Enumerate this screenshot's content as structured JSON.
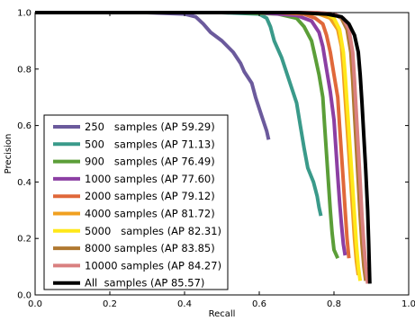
{
  "chart_data": {
    "type": "line",
    "xlabel": "Recall",
    "ylabel": "Precision",
    "xlim": [
      0.0,
      1.0
    ],
    "ylim": [
      0.0,
      1.0
    ],
    "xticks": [
      "0.0",
      "0.2",
      "0.4",
      "0.6",
      "0.8",
      "1.0"
    ],
    "yticks": [
      "0.0",
      "0.2",
      "0.4",
      "0.6",
      "0.8",
      "1.0"
    ],
    "grid": false,
    "legend_position": "lower-left",
    "series": [
      {
        "name": "250   samples (AP 59.29)",
        "color": "#6b5a9c",
        "x": [
          0.0,
          0.3,
          0.4,
          0.43,
          0.45,
          0.47,
          0.5,
          0.53,
          0.55,
          0.56,
          0.58,
          0.59,
          0.6,
          0.61,
          0.62,
          0.625
        ],
        "y": [
          1.0,
          1.0,
          0.995,
          0.985,
          0.96,
          0.93,
          0.9,
          0.86,
          0.82,
          0.79,
          0.75,
          0.7,
          0.66,
          0.62,
          0.58,
          0.55
        ]
      },
      {
        "name": "500   samples (AP 71.13)",
        "color": "#3a9a8a",
        "x": [
          0.0,
          0.5,
          0.6,
          0.62,
          0.63,
          0.64,
          0.66,
          0.68,
          0.7,
          0.71,
          0.72,
          0.73,
          0.745,
          0.755,
          0.76,
          0.765
        ],
        "y": [
          1.0,
          1.0,
          0.995,
          0.98,
          0.95,
          0.9,
          0.84,
          0.76,
          0.68,
          0.6,
          0.52,
          0.45,
          0.4,
          0.35,
          0.31,
          0.28
        ]
      },
      {
        "name": "900   samples (AP 76.49)",
        "color": "#5b9e38",
        "x": [
          0.0,
          0.55,
          0.65,
          0.7,
          0.72,
          0.74,
          0.75,
          0.76,
          0.77,
          0.775,
          0.78,
          0.785,
          0.79,
          0.795,
          0.8,
          0.81
        ],
        "y": [
          1.0,
          1.0,
          0.995,
          0.98,
          0.95,
          0.9,
          0.84,
          0.78,
          0.7,
          0.6,
          0.5,
          0.4,
          0.3,
          0.22,
          0.16,
          0.13
        ]
      },
      {
        "name": "1000 samples (AP 77.60)",
        "color": "#8c3fa3",
        "x": [
          0.0,
          0.6,
          0.7,
          0.74,
          0.76,
          0.77,
          0.78,
          0.79,
          0.8,
          0.805,
          0.81,
          0.815,
          0.82,
          0.825,
          0.83
        ],
        "y": [
          1.0,
          1.0,
          0.99,
          0.97,
          0.93,
          0.88,
          0.8,
          0.72,
          0.62,
          0.52,
          0.42,
          0.33,
          0.25,
          0.18,
          0.14
        ]
      },
      {
        "name": "2000 samples (AP 79.12)",
        "color": "#e0683a",
        "x": [
          0.0,
          0.65,
          0.72,
          0.75,
          0.77,
          0.78,
          0.79,
          0.8,
          0.81,
          0.815,
          0.82,
          0.825,
          0.83,
          0.835,
          0.84
        ],
        "y": [
          1.0,
          1.0,
          0.995,
          0.98,
          0.96,
          0.92,
          0.86,
          0.78,
          0.7,
          0.6,
          0.5,
          0.4,
          0.3,
          0.2,
          0.13
        ]
      },
      {
        "name": "4000 samples (AP 81.72)",
        "color": "#f0a020",
        "x": [
          0.0,
          0.7,
          0.76,
          0.79,
          0.81,
          0.82,
          0.825,
          0.83,
          0.835,
          0.84,
          0.845,
          0.85,
          0.855,
          0.86,
          0.865
        ],
        "y": [
          1.0,
          1.0,
          0.995,
          0.98,
          0.94,
          0.88,
          0.8,
          0.7,
          0.6,
          0.5,
          0.4,
          0.3,
          0.2,
          0.12,
          0.07
        ]
      },
      {
        "name": "5000   samples (AP 82.31)",
        "color": "#ffe81a",
        "x": [
          0.0,
          0.72,
          0.78,
          0.8,
          0.815,
          0.825,
          0.83,
          0.835,
          0.84,
          0.845,
          0.85,
          0.855,
          0.86,
          0.865,
          0.87
        ],
        "y": [
          1.0,
          1.0,
          0.995,
          0.98,
          0.94,
          0.86,
          0.78,
          0.68,
          0.58,
          0.48,
          0.38,
          0.28,
          0.18,
          0.1,
          0.05
        ]
      },
      {
        "name": "8000 samples (AP 83.85)",
        "color": "#b07830",
        "x": [
          0.0,
          0.75,
          0.8,
          0.82,
          0.835,
          0.845,
          0.85,
          0.855,
          0.86,
          0.865,
          0.87,
          0.875,
          0.88,
          0.885
        ],
        "y": [
          1.0,
          1.0,
          0.995,
          0.98,
          0.94,
          0.86,
          0.76,
          0.64,
          0.52,
          0.4,
          0.28,
          0.18,
          0.1,
          0.05
        ]
      },
      {
        "name": "10000 samples (AP 84.27)",
        "color": "#d98080",
        "x": [
          0.0,
          0.75,
          0.8,
          0.825,
          0.84,
          0.85,
          0.855,
          0.86,
          0.865,
          0.87,
          0.875,
          0.88,
          0.885,
          0.89
        ],
        "y": [
          1.0,
          1.0,
          0.995,
          0.98,
          0.94,
          0.86,
          0.76,
          0.64,
          0.52,
          0.4,
          0.28,
          0.18,
          0.1,
          0.04
        ]
      },
      {
        "name": "All  samples (AP 85.57)",
        "color": "#000000",
        "x": [
          0.0,
          0.7,
          0.78,
          0.82,
          0.84,
          0.855,
          0.865,
          0.87,
          0.875,
          0.88,
          0.885,
          0.89,
          0.893,
          0.896
        ],
        "y": [
          1.0,
          1.0,
          0.995,
          0.985,
          0.96,
          0.92,
          0.86,
          0.78,
          0.68,
          0.56,
          0.44,
          0.3,
          0.18,
          0.04
        ]
      }
    ]
  }
}
